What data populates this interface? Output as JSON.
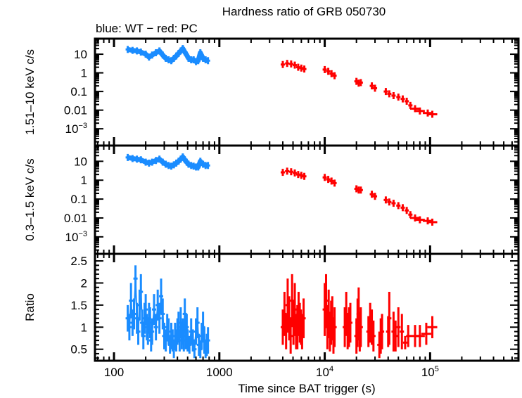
{
  "chart_data": {
    "type": "scatter",
    "title": "Hardness ratio of GRB 050730",
    "subtitle": "blue: WT − red: PC",
    "xlabel": "Time since BAT trigger (s)",
    "xscale": "log",
    "xlim": [
      66,
      690000
    ],
    "x_ticks": [
      {
        "value": 100,
        "label": "100"
      },
      {
        "value": 1000,
        "label": "1000"
      },
      {
        "value": 10000,
        "label": "10",
        "sup": "4"
      },
      {
        "value": 100000,
        "label": "10",
        "sup": "5"
      }
    ],
    "colors": {
      "WT": "#1a8cff",
      "PC": "#ff0000",
      "axis": "#000000"
    },
    "panels": [
      {
        "id": "hard",
        "ylabel": "1.51–10 keV c/s",
        "yscale": "log",
        "ylim": [
          0.000126,
          68
        ],
        "y_ticks": [
          {
            "value": 10,
            "label": "10"
          },
          {
            "value": 1,
            "label": "1"
          },
          {
            "value": 0.1,
            "label": "0.1"
          },
          {
            "value": 0.01,
            "label": "0.01"
          },
          {
            "value": 0.001,
            "label": "10",
            "sup": "−3"
          }
        ],
        "series": [
          {
            "name": "WT",
            "x": [
              135,
              150,
              165,
              180,
              200,
              215,
              230,
              250,
              270,
              290,
              310,
              330,
              350,
              370,
              390,
              410,
              430,
              450,
              470,
              490,
              510,
              540,
              570,
              600,
              630,
              660,
              700,
              740,
              780
            ],
            "y": [
              18,
              16,
              15,
              13,
              10,
              7,
              9,
              12,
              15,
              9,
              6,
              5,
              4.5,
              6,
              8,
              11,
              15,
              20,
              13,
              9,
              6,
              5,
              5,
              4,
              4.5,
              12,
              6,
              5,
              4.5
            ]
          },
          {
            "name": "PC",
            "x": [
              4000,
              4400,
              4800,
              5200,
              5600,
              6000,
              6400,
              10000,
              10800,
              11600,
              12400,
              20000,
              21000,
              22000,
              28000,
              30000,
              38000,
              41000,
              45000,
              50000,
              55000,
              60000,
              65000,
              72000,
              80000,
              95000,
              105000
            ],
            "y": [
              2.8,
              3.2,
              3.0,
              2.6,
              2.0,
              1.8,
              1.6,
              1.5,
              1.2,
              0.9,
              0.7,
              0.35,
              0.28,
              0.3,
              0.2,
              0.15,
              0.1,
              0.075,
              0.06,
              0.05,
              0.04,
              0.03,
              0.018,
              0.012,
              0.009,
              0.007,
              0.006
            ]
          }
        ]
      },
      {
        "id": "soft",
        "ylabel": "0.3–1.5 keV c/s",
        "yscale": "log",
        "ylim": [
          0.000126,
          68
        ],
        "y_ticks": [
          {
            "value": 10,
            "label": "10"
          },
          {
            "value": 1,
            "label": "1"
          },
          {
            "value": 0.1,
            "label": "0.1"
          },
          {
            "value": 0.01,
            "label": "0.01"
          },
          {
            "value": 0.001,
            "label": "10",
            "sup": "−3"
          }
        ],
        "series": [
          {
            "name": "WT",
            "x": [
              135,
              150,
              165,
              180,
              200,
              215,
              230,
              250,
              270,
              290,
              310,
              330,
              350,
              370,
              390,
              410,
              430,
              450,
              470,
              490,
              510,
              540,
              570,
              600,
              630,
              660,
              700,
              740,
              780
            ],
            "y": [
              16,
              14,
              13,
              12,
              9,
              8,
              9,
              11,
              13,
              9,
              7,
              6,
              5.5,
              6.5,
              8,
              10,
              13,
              17,
              12,
              9,
              7,
              6,
              5.5,
              5,
              5,
              10,
              7,
              6,
              6
            ]
          },
          {
            "name": "PC",
            "x": [
              4000,
              4400,
              4800,
              5200,
              5600,
              6000,
              6400,
              10000,
              10800,
              11600,
              12400,
              20000,
              21000,
              22000,
              28000,
              30000,
              38000,
              41000,
              45000,
              50000,
              55000,
              60000,
              65000,
              72000,
              80000,
              95000,
              105000
            ],
            "y": [
              2.6,
              3.0,
              2.8,
              2.4,
              2.0,
              1.8,
              1.6,
              1.4,
              1.1,
              0.9,
              0.7,
              0.35,
              0.3,
              0.3,
              0.18,
              0.14,
              0.09,
              0.07,
              0.06,
              0.045,
              0.035,
              0.025,
              0.015,
              0.01,
              0.008,
              0.007,
              0.006
            ]
          }
        ]
      },
      {
        "id": "ratio",
        "ylabel": "Ratio",
        "yscale": "linear",
        "ylim": [
          0.24,
          2.66
        ],
        "y_ticks": [
          {
            "value": 0.5,
            "label": "0.5"
          },
          {
            "value": 1,
            "label": "1"
          },
          {
            "value": 1.5,
            "label": "1.5"
          },
          {
            "value": 2,
            "label": "2"
          },
          {
            "value": 2.5,
            "label": "2.5"
          }
        ],
        "series": [
          {
            "name": "WT",
            "x": [
              135,
              140,
              145,
              150,
              155,
              160,
              165,
              170,
              175,
              180,
              185,
              190,
              195,
              200,
              205,
              210,
              215,
              220,
              225,
              230,
              240,
              250,
              260,
              270,
              280,
              290,
              300,
              310,
              320,
              330,
              340,
              350,
              360,
              370,
              380,
              390,
              400,
              410,
              420,
              430,
              440,
              450,
              460,
              470,
              480,
              490,
              500,
              520,
              540,
              560,
              580,
              600,
              620,
              640,
              660,
              680,
              700,
              720,
              740,
              760,
              780
            ],
            "y": [
              1.2,
              1.0,
              1.6,
              1.1,
              1.3,
              2.1,
              1.2,
              0.9,
              1.5,
              1.8,
              1.1,
              0.8,
              1.2,
              1.4,
              1.0,
              0.9,
              1.2,
              1.1,
              0.7,
              0.9,
              1.4,
              1.0,
              1.5,
              1.2,
              1.7,
              1.3,
              0.8,
              0.7,
              1.0,
              0.9,
              0.6,
              0.8,
              0.7,
              0.5,
              0.8,
              0.7,
              0.9,
              1.0,
              0.7,
              1.1,
              0.8,
              0.9,
              0.7,
              1.3,
              0.8,
              1.0,
              0.7,
              0.6,
              0.9,
              0.7,
              0.5,
              0.9,
              1.1,
              0.6,
              0.5,
              0.8,
              1.0,
              0.7,
              0.5,
              0.6,
              0.7
            ],
            "err": [
              0.3,
              0.3,
              0.4,
              0.3,
              0.35,
              0.3,
              0.35,
              0.3,
              0.35,
              0.4,
              0.3,
              0.3,
              0.35,
              0.35,
              0.3,
              0.3,
              0.35,
              0.35,
              0.25,
              0.3,
              0.35,
              0.3,
              0.35,
              0.35,
              0.4,
              0.35,
              0.3,
              0.25,
              0.3,
              0.3,
              0.2,
              0.3,
              0.25,
              0.2,
              0.3,
              0.25,
              0.3,
              0.35,
              0.25,
              0.35,
              0.3,
              0.3,
              0.25,
              0.35,
              0.3,
              0.3,
              0.25,
              0.2,
              0.3,
              0.25,
              0.2,
              0.3,
              0.35,
              0.25,
              0.2,
              0.3,
              0.35,
              0.3,
              0.2,
              0.25,
              0.3
            ]
          },
          {
            "name": "PC",
            "x": [
              4000,
              4150,
              4300,
              4450,
              4600,
              4750,
              4900,
              5050,
              5200,
              5350,
              5500,
              5650,
              5800,
              5950,
              6100,
              6300,
              10000,
              10300,
              10600,
              10900,
              11200,
              11500,
              11800,
              12100,
              12400,
              15500,
              16000,
              16500,
              17000,
              17500,
              20000,
              20500,
              21000,
              21500,
              22000,
              26000,
              27000,
              28000,
              29000,
              33000,
              34000,
              35000,
              40000,
              41000,
              45000,
              47000,
              50000,
              54000,
              58000,
              62000,
              72000,
              80000,
              92000,
              105000
            ],
            "y": [
              1.0,
              1.3,
              0.9,
              1.5,
              1.2,
              0.8,
              1.6,
              1.1,
              1.4,
              0.9,
              1.0,
              1.3,
              1.1,
              1.0,
              0.9,
              1.2,
              1.4,
              1.6,
              1.0,
              1.3,
              0.9,
              1.1,
              1.2,
              0.8,
              1.0,
              1.0,
              1.3,
              0.9,
              1.0,
              1.1,
              0.8,
              1.1,
              1.3,
              0.9,
              1.0,
              0.9,
              1.1,
              1.0,
              0.8,
              0.6,
              0.8,
              0.9,
              0.9,
              1.2,
              0.9,
              0.8,
              1.0,
              0.9,
              0.65,
              0.8,
              0.8,
              0.8,
              0.85,
              1.0
            ],
            "err": [
              0.4,
              0.5,
              0.4,
              0.6,
              0.5,
              0.4,
              0.6,
              0.5,
              0.6,
              0.4,
              0.5,
              0.5,
              0.45,
              0.4,
              0.4,
              0.45,
              0.6,
              0.6,
              0.5,
              0.55,
              0.45,
              0.5,
              0.5,
              0.4,
              0.45,
              0.45,
              0.5,
              0.4,
              0.45,
              0.45,
              0.4,
              0.55,
              0.6,
              0.45,
              0.45,
              0.35,
              0.45,
              0.4,
              0.35,
              0.3,
              0.4,
              0.4,
              0.35,
              0.6,
              0.45,
              0.35,
              0.45,
              0.4,
              0.15,
              0.25,
              0.25,
              0.25,
              0.25,
              0.25
            ]
          }
        ]
      }
    ]
  }
}
